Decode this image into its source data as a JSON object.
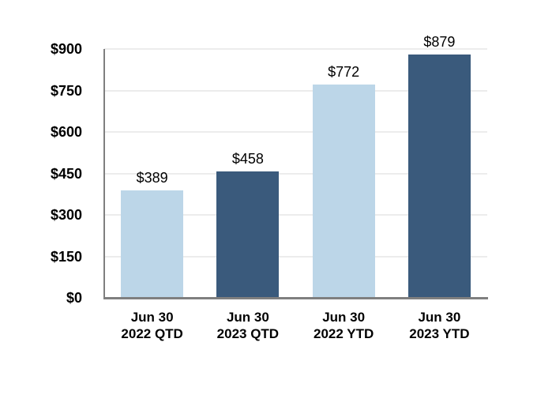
{
  "page": {
    "background_color": "#ffffff"
  },
  "chart_data": {
    "type": "bar",
    "title": "",
    "xlabel": "",
    "ylabel": "",
    "categories": [
      [
        "Jun 30",
        "2022 QTD"
      ],
      [
        "Jun 30",
        "2023 QTD"
      ],
      [
        "Jun 30",
        "2022 YTD"
      ],
      [
        "Jun 30",
        "2023 YTD"
      ]
    ],
    "values": [
      389,
      458,
      772,
      879
    ],
    "value_labels": [
      "$389",
      "$458",
      "$772",
      "$879"
    ],
    "bar_colors": [
      "#BCD6E8",
      "#3A5A7C",
      "#BCD6E8",
      "#3A5A7C"
    ],
    "palette": {
      "light_blue": "#BCD6E8",
      "dark_blue": "#3A5A7C"
    },
    "ylim": [
      0,
      900
    ],
    "ytick_step": 150,
    "ytick_labels": [
      "$0",
      "$150",
      "$300",
      "$450",
      "$600",
      "$750",
      "$900"
    ],
    "grid": true,
    "legend": false,
    "gridline_color": "#ececec",
    "axis_color": "#7f7f7f",
    "label_color": "#000000"
  }
}
